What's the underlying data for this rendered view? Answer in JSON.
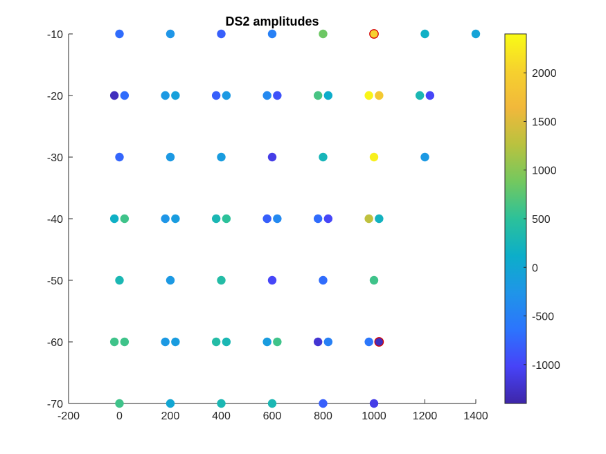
{
  "chart_data": {
    "type": "scatter",
    "title": "DS2 amplitudes",
    "xlabel": "",
    "ylabel": "",
    "xlim": [
      -200,
      1400
    ],
    "ylim": [
      -70,
      -10
    ],
    "xticks": [
      "-200",
      "0",
      "200",
      "400",
      "600",
      "800",
      "1000",
      "1200",
      "1400"
    ],
    "yticks": [
      "-10",
      "-20",
      "-30",
      "-40",
      "-50",
      "-60",
      "-70"
    ],
    "colorbar": {
      "range": [
        -1400,
        2400
      ],
      "ticks": [
        "-1000",
        "-500",
        "0",
        "500",
        "1000",
        "1500",
        "2000"
      ],
      "colormap": "parula"
    },
    "points": [
      {
        "x": 0,
        "y": -10,
        "c": -700
      },
      {
        "x": 200,
        "y": -10,
        "c": -250
      },
      {
        "x": 400,
        "y": -10,
        "c": -800
      },
      {
        "x": 600,
        "y": -10,
        "c": -500
      },
      {
        "x": 800,
        "y": -10,
        "c": 850
      },
      {
        "x": 1000,
        "y": -10,
        "c": 2000,
        "highlight": true
      },
      {
        "x": 1200,
        "y": -10,
        "c": 150
      },
      {
        "x": 1400,
        "y": -10,
        "c": -50
      },
      {
        "x": -20,
        "y": -20,
        "c": -1300
      },
      {
        "x": 20,
        "y": -20,
        "c": -700
      },
      {
        "x": 180,
        "y": -20,
        "c": -200
      },
      {
        "x": 220,
        "y": -20,
        "c": -100
      },
      {
        "x": 380,
        "y": -20,
        "c": -800
      },
      {
        "x": 420,
        "y": -20,
        "c": -200
      },
      {
        "x": 580,
        "y": -20,
        "c": -400
      },
      {
        "x": 620,
        "y": -20,
        "c": -900
      },
      {
        "x": 780,
        "y": -20,
        "c": 650
      },
      {
        "x": 820,
        "y": -20,
        "c": 100
      },
      {
        "x": 980,
        "y": -20,
        "c": 2350
      },
      {
        "x": 1020,
        "y": -20,
        "c": 1900
      },
      {
        "x": 1180,
        "y": -20,
        "c": 300
      },
      {
        "x": 1220,
        "y": -20,
        "c": -1000
      },
      {
        "x": 0,
        "y": -30,
        "c": -750
      },
      {
        "x": 200,
        "y": -30,
        "c": -200
      },
      {
        "x": 400,
        "y": -30,
        "c": -150
      },
      {
        "x": 600,
        "y": -30,
        "c": -1100
      },
      {
        "x": 800,
        "y": -30,
        "c": 250
      },
      {
        "x": 1000,
        "y": -30,
        "c": 2300
      },
      {
        "x": 1200,
        "y": -30,
        "c": -200
      },
      {
        "x": -20,
        "y": -40,
        "c": 150
      },
      {
        "x": 20,
        "y": -40,
        "c": 600
      },
      {
        "x": 180,
        "y": -40,
        "c": -250
      },
      {
        "x": 220,
        "y": -40,
        "c": -150
      },
      {
        "x": 380,
        "y": -40,
        "c": 300
      },
      {
        "x": 420,
        "y": -40,
        "c": 500
      },
      {
        "x": 580,
        "y": -40,
        "c": -800
      },
      {
        "x": 620,
        "y": -40,
        "c": -400
      },
      {
        "x": 780,
        "y": -40,
        "c": -700
      },
      {
        "x": 820,
        "y": -40,
        "c": -1000
      },
      {
        "x": 980,
        "y": -40,
        "c": 1300
      },
      {
        "x": 1020,
        "y": -40,
        "c": 200
      },
      {
        "x": 0,
        "y": -50,
        "c": 300
      },
      {
        "x": 200,
        "y": -50,
        "c": -200
      },
      {
        "x": 400,
        "y": -50,
        "c": 400
      },
      {
        "x": 600,
        "y": -50,
        "c": -1000
      },
      {
        "x": 800,
        "y": -50,
        "c": -700
      },
      {
        "x": 1000,
        "y": -50,
        "c": 600
      },
      {
        "x": -20,
        "y": -60,
        "c": 600
      },
      {
        "x": 20,
        "y": -60,
        "c": 600
      },
      {
        "x": 180,
        "y": -60,
        "c": -200
      },
      {
        "x": 220,
        "y": -60,
        "c": -150
      },
      {
        "x": 380,
        "y": -60,
        "c": 400
      },
      {
        "x": 420,
        "y": -60,
        "c": 300
      },
      {
        "x": 580,
        "y": -60,
        "c": -150
      },
      {
        "x": 620,
        "y": -60,
        "c": 600
      },
      {
        "x": 780,
        "y": -60,
        "c": -1200
      },
      {
        "x": 820,
        "y": -60,
        "c": -500
      },
      {
        "x": 980,
        "y": -60,
        "c": -600
      },
      {
        "x": 1020,
        "y": -60,
        "c": -1300,
        "highlight": true
      },
      {
        "x": 0,
        "y": -70,
        "c": 600
      },
      {
        "x": 200,
        "y": -70,
        "c": 0
      },
      {
        "x": 400,
        "y": -70,
        "c": 300
      },
      {
        "x": 600,
        "y": -70,
        "c": 300
      },
      {
        "x": 800,
        "y": -70,
        "c": -800
      },
      {
        "x": 1000,
        "y": -70,
        "c": -1100
      }
    ]
  }
}
